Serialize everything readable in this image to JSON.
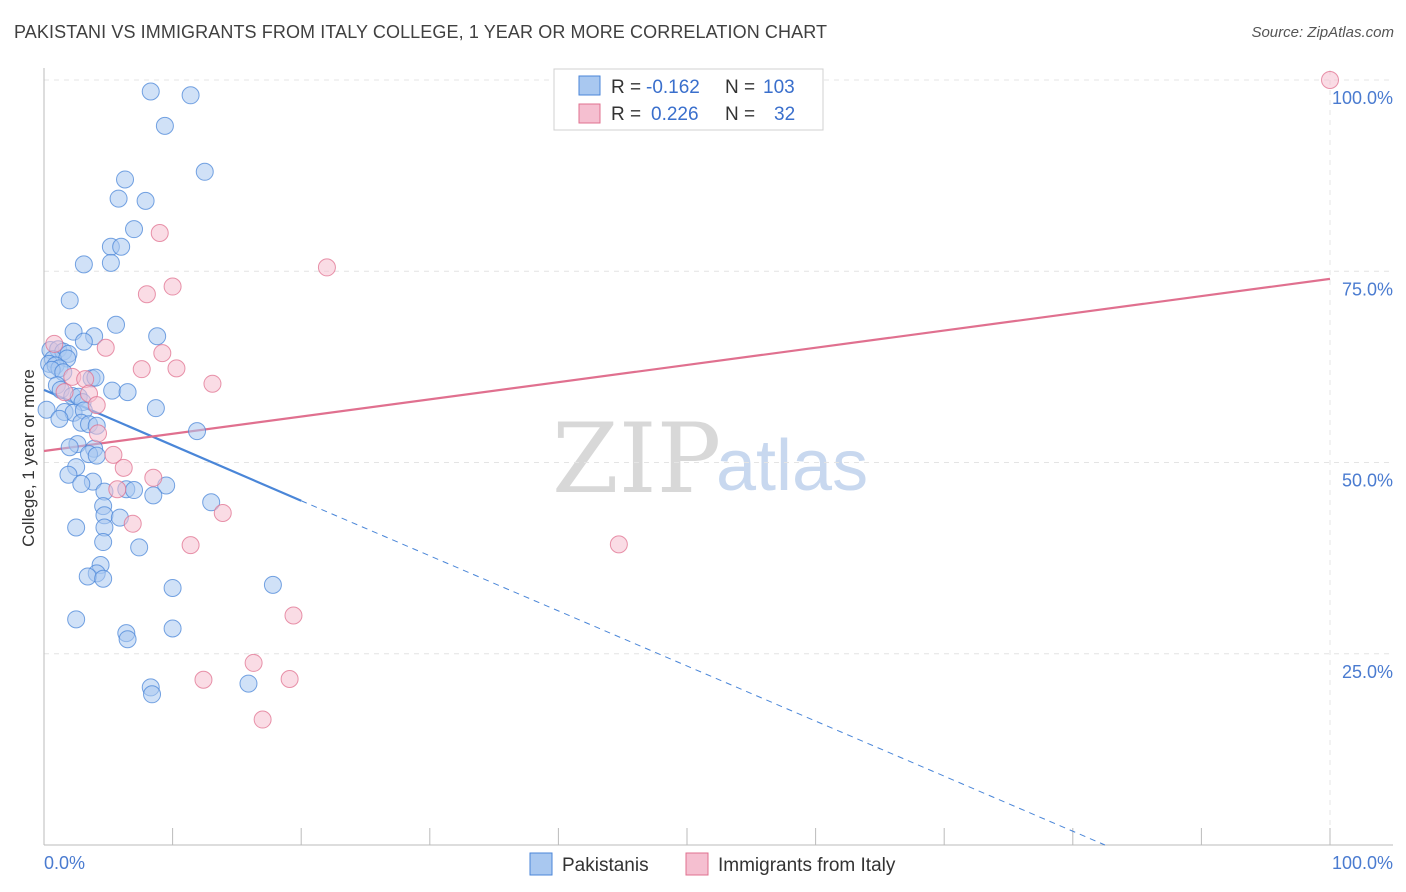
{
  "title": "PAKISTANI VS IMMIGRANTS FROM ITALY COLLEGE, 1 YEAR OR MORE CORRELATION CHART",
  "source": "Source: ZipAtlas.com",
  "colors": {
    "blue": "#4a86d8",
    "blue_fill": "#a9c8f0",
    "pink": "#e0708f",
    "pink_fill": "#f5bfd0",
    "axis_label": "#4a7bd0"
  },
  "legend": {
    "r_label": "R =",
    "n_label": "N =",
    "series": [
      {
        "name": "Pakistanis",
        "r": "-0.162",
        "n": "103"
      },
      {
        "name": "Immigrants from Italy",
        "r": "0.226",
        "n": "32"
      }
    ]
  },
  "chart_data": {
    "type": "scatter",
    "title": "PAKISTANI VS IMMIGRANTS FROM ITALY COLLEGE, 1 YEAR OR MORE CORRELATION CHART",
    "xlabel": "",
    "ylabel": "College, 1 year or more",
    "xlim": [
      0,
      100
    ],
    "ylim": [
      0,
      100
    ],
    "x_tick_labels": [
      "0.0%",
      "100.0%"
    ],
    "y_tick_labels": [
      "25.0%",
      "50.0%",
      "75.0%",
      "100.0%"
    ],
    "y_ticks": [
      25,
      50,
      75,
      100
    ],
    "watermark": {
      "zip": "ZIP",
      "atlas": "atlas"
    },
    "series": [
      {
        "name": "Pakistanis",
        "trend": {
          "x0": 0,
          "y0": 59.5,
          "x1": 20,
          "y1": 45.0,
          "dash_to_x": 82.5,
          "dash_to_y": 0
        },
        "points": [
          [
            8.3,
            98.5
          ],
          [
            11.4,
            98.0
          ],
          [
            9.4,
            94.0
          ],
          [
            12.5,
            88.0
          ],
          [
            6.3,
            87.0
          ],
          [
            5.8,
            84.5
          ],
          [
            7.9,
            84.2
          ],
          [
            7.0,
            80.5
          ],
          [
            5.2,
            78.2
          ],
          [
            6.0,
            78.2
          ],
          [
            5.2,
            76.1
          ],
          [
            3.1,
            75.9
          ],
          [
            2.0,
            71.2
          ],
          [
            5.6,
            68.0
          ],
          [
            2.3,
            67.1
          ],
          [
            8.8,
            66.5
          ],
          [
            3.9,
            66.5
          ],
          [
            3.1,
            65.8
          ],
          [
            0.5,
            64.7
          ],
          [
            1.1,
            64.8
          ],
          [
            1.5,
            64.5
          ],
          [
            1.9,
            64.2
          ],
          [
            0.7,
            63.5
          ],
          [
            1.8,
            63.6
          ],
          [
            0.4,
            62.9
          ],
          [
            0.9,
            62.7
          ],
          [
            1.2,
            62.3
          ],
          [
            0.6,
            62.1
          ],
          [
            1.5,
            61.8
          ],
          [
            3.7,
            61.0
          ],
          [
            4.0,
            61.1
          ],
          [
            1.0,
            60.1
          ],
          [
            1.3,
            59.5
          ],
          [
            5.3,
            59.4
          ],
          [
            6.5,
            59.2
          ],
          [
            2.2,
            58.7
          ],
          [
            2.7,
            58.6
          ],
          [
            3.0,
            57.9
          ],
          [
            0.2,
            56.9
          ],
          [
            1.6,
            56.6
          ],
          [
            2.3,
            56.5
          ],
          [
            3.1,
            56.8
          ],
          [
            8.7,
            57.1
          ],
          [
            1.2,
            55.7
          ],
          [
            2.9,
            55.2
          ],
          [
            3.5,
            55.0
          ],
          [
            4.1,
            54.8
          ],
          [
            11.9,
            54.1
          ],
          [
            2.6,
            52.4
          ],
          [
            2.0,
            52.0
          ],
          [
            3.9,
            51.8
          ],
          [
            3.5,
            51.1
          ],
          [
            4.1,
            50.9
          ],
          [
            2.5,
            49.4
          ],
          [
            1.9,
            48.4
          ],
          [
            3.8,
            47.5
          ],
          [
            2.9,
            47.2
          ],
          [
            9.5,
            47.0
          ],
          [
            6.4,
            46.5
          ],
          [
            7.0,
            46.4
          ],
          [
            4.7,
            46.2
          ],
          [
            8.5,
            45.7
          ],
          [
            13.0,
            44.8
          ],
          [
            4.6,
            44.3
          ],
          [
            4.7,
            43.1
          ],
          [
            5.9,
            42.8
          ],
          [
            2.5,
            41.5
          ],
          [
            4.7,
            41.5
          ],
          [
            4.6,
            39.6
          ],
          [
            7.4,
            38.9
          ],
          [
            4.4,
            36.6
          ],
          [
            4.1,
            35.5
          ],
          [
            3.4,
            35.1
          ],
          [
            4.6,
            34.8
          ],
          [
            17.8,
            34.0
          ],
          [
            10.0,
            33.6
          ],
          [
            2.5,
            29.5
          ],
          [
            10.0,
            28.3
          ],
          [
            6.4,
            27.7
          ],
          [
            6.5,
            26.9
          ],
          [
            8.3,
            20.6
          ],
          [
            15.9,
            21.1
          ],
          [
            8.4,
            19.7
          ]
        ]
      },
      {
        "name": "Immigrants from Italy",
        "trend": {
          "x0": 0,
          "y0": 51.5,
          "x1": 100,
          "y1": 74.0
        },
        "points": [
          [
            100.0,
            100.0
          ],
          [
            9.0,
            80.0
          ],
          [
            22.0,
            75.5
          ],
          [
            10.0,
            73.0
          ],
          [
            8.0,
            72.0
          ],
          [
            0.8,
            65.5
          ],
          [
            4.8,
            65.0
          ],
          [
            9.2,
            64.3
          ],
          [
            10.3,
            62.3
          ],
          [
            7.6,
            62.2
          ],
          [
            2.2,
            61.2
          ],
          [
            3.2,
            60.9
          ],
          [
            13.1,
            60.3
          ],
          [
            1.6,
            59.2
          ],
          [
            3.5,
            59.0
          ],
          [
            4.1,
            57.5
          ],
          [
            4.2,
            53.8
          ],
          [
            5.4,
            51.0
          ],
          [
            6.2,
            49.3
          ],
          [
            8.5,
            48.0
          ],
          [
            5.7,
            46.5
          ],
          [
            13.9,
            43.4
          ],
          [
            6.9,
            42.0
          ],
          [
            44.7,
            39.3
          ],
          [
            11.4,
            39.2
          ],
          [
            19.4,
            30.0
          ],
          [
            16.3,
            23.8
          ],
          [
            12.4,
            21.6
          ],
          [
            19.1,
            21.7
          ],
          [
            17.0,
            16.4
          ]
        ]
      }
    ]
  }
}
